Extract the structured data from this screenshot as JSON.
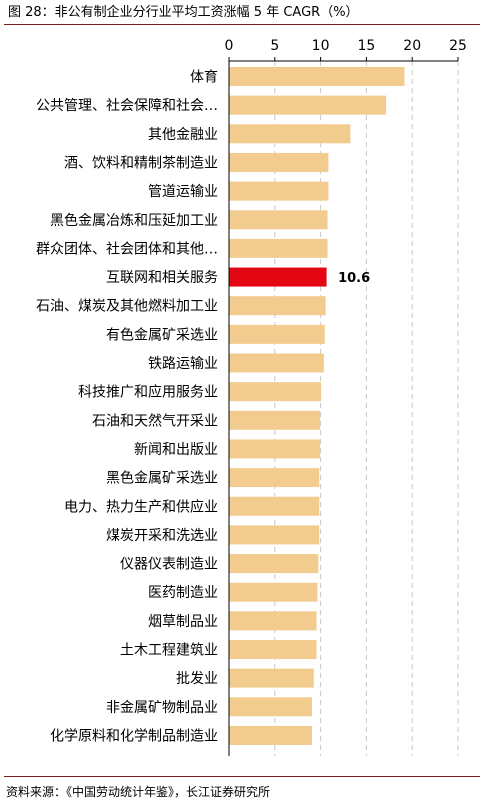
{
  "title": "图 28：非公有制企业分行业平均工资涨幅 5 年 CAGR（%）",
  "source": "资料来源：《中国劳动统计年鉴》，长江证券研究所",
  "colors": {
    "bar": "#F2CC8F",
    "highlight": "#E30613",
    "grid": "#C8C8C8",
    "axis": "#000000",
    "rule": "#7A1F1F"
  },
  "chart_data": {
    "type": "bar",
    "orientation": "horizontal",
    "xlim": [
      0,
      25
    ],
    "ticks": [
      0,
      5,
      10,
      15,
      20,
      25
    ],
    "tick_labels": [
      "0",
      "5",
      "10",
      "15",
      "20",
      "25"
    ],
    "axis_position": "top",
    "grid": "vertical-dashed",
    "categories": [
      "体育",
      "公共管理、社会保障和社会…",
      "其他金融业",
      "酒、饮料和精制茶制造业",
      "管道运输业",
      "黑色金属冶炼和压延加工业",
      "群众团体、社会团体和其他…",
      "互联网和相关服务",
      "石油、煤炭及其他燃料加工业",
      "有色金属矿采选业",
      "铁路运输业",
      "科技推广和应用服务业",
      "石油和天然气开采业",
      "新闻和出版业",
      "黑色金属矿采选业",
      "电力、热力生产和供应业",
      "煤炭开采和洗选业",
      "仪器仪表制造业",
      "医药制造业",
      "烟草制品业",
      "土木工程建筑业",
      "批发业",
      "非金属矿物制品业",
      "化学原料和化学制品制造业"
    ],
    "values": [
      19.1,
      17.1,
      13.2,
      10.8,
      10.8,
      10.7,
      10.7,
      10.6,
      10.5,
      10.4,
      10.3,
      10.0,
      9.9,
      9.9,
      9.8,
      9.8,
      9.8,
      9.7,
      9.6,
      9.5,
      9.5,
      9.2,
      9.0,
      9.0
    ],
    "highlight_index": 7,
    "data_labels": [
      {
        "index": 7,
        "text": "10.6"
      }
    ]
  }
}
